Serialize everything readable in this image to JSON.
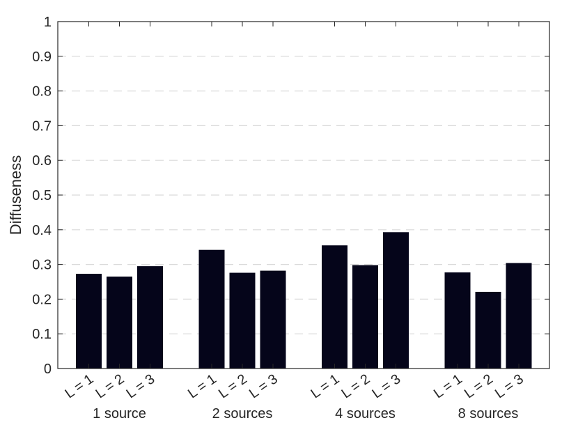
{
  "chart_data": {
    "type": "bar",
    "title": "",
    "xlabel": "",
    "ylabel": "Diffuseness",
    "ylim": [
      0,
      1
    ],
    "yticks": [
      "0",
      "0.1",
      "0.2",
      "0.3",
      "0.4",
      "0.5",
      "0.6",
      "0.7",
      "0.8",
      "0.9",
      "1"
    ],
    "grid": "horizontal dashed",
    "bar_color": "#05051a",
    "categories": [
      "L = 1",
      "L = 2",
      "L = 3"
    ],
    "groups": [
      {
        "label": "1 source",
        "values": [
          0.273,
          0.265,
          0.295
        ]
      },
      {
        "label": "2 sources",
        "values": [
          0.342,
          0.276,
          0.282
        ]
      },
      {
        "label": "4 sources",
        "values": [
          0.355,
          0.298,
          0.393
        ]
      },
      {
        "label": "8 sources",
        "values": [
          0.277,
          0.221,
          0.304
        ]
      }
    ]
  }
}
